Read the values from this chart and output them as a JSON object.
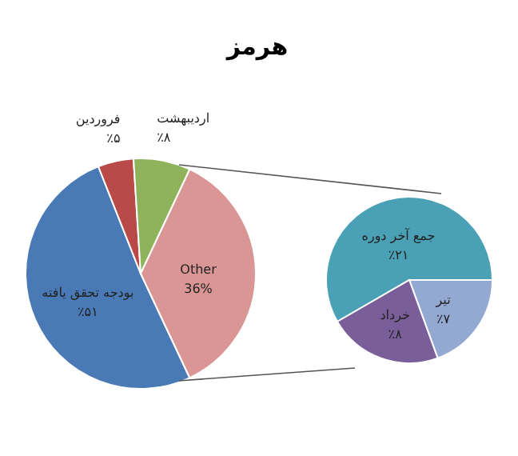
{
  "chart_data": [
    {
      "type": "pie",
      "title": "هرمز",
      "categories": [
        "بودجه تحقق یافته",
        "فروردین",
        "اردیبهشت",
        "Other"
      ],
      "values": [
        51,
        5,
        8,
        36
      ],
      "colors": [
        "#4a7ab5",
        "#b94a48",
        "#8fb35a",
        "#d99694"
      ],
      "value_labels": [
        "٪۵۱",
        "٪۵",
        "٪۸",
        "36%"
      ],
      "legend": false
    },
    {
      "type": "pie",
      "categories": [
        "جمع آخر دوره",
        "تیر",
        "خرداد"
      ],
      "values": [
        21,
        7,
        8
      ],
      "colors": [
        "#4aa0b5",
        "#93a9d2",
        "#7a5e9a"
      ],
      "value_labels": [
        "٪۲۱",
        "٪۷",
        "٪۸"
      ],
      "legend": false
    }
  ]
}
